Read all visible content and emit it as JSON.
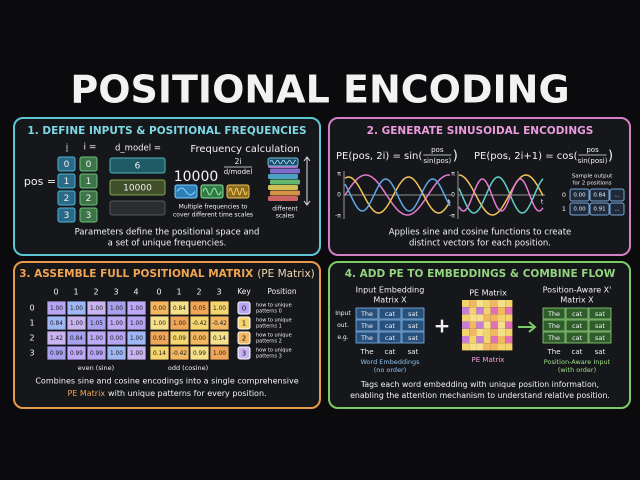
{
  "title": "POSITIONAL ENCODING",
  "define_inputs": {
    "title": "1. DEFINE INPUTS & POSITIONAL FREQUENCIES",
    "pos_header": "i",
    "i_header": "i =",
    "d_header": "d_model =",
    "pos_label": "pos =",
    "pos_values": [
      "0",
      "1",
      "2",
      "3"
    ],
    "i_values": [
      "0",
      "1",
      "2",
      "3"
    ],
    "d_values": [
      "6",
      "10000"
    ],
    "freq_title": "Frequency calculation",
    "freq_base": "10000",
    "freq_num": "2i",
    "freq_den": "d/model",
    "freq_note": [
      "Multiple frequencies to",
      "cover different time scales"
    ],
    "scales_note": [
      "different",
      "scales"
    ],
    "caption": [
      "Parameters define the positional space and",
      "a set of unique frequencies."
    ]
  },
  "sinusoids": {
    "title": "2. GENERATE SINUSOIDAL ENCODINGS",
    "formulas": [
      {
        "lhs": "PE(pos, 2i) = sin(",
        "num": "pos",
        "den": "sin(pos)",
        "rhs": ")"
      },
      {
        "lhs": "PE(pos, 2i+1) = cos(",
        "num": "pos",
        "den": "sin(posi)",
        "rhs": ")"
      }
    ],
    "axis_labels": [
      "π",
      "0",
      "-π",
      "t"
    ],
    "sample_title": [
      "Sample output",
      "for 2 positions"
    ],
    "sample_rows": [
      [
        "0",
        "0.00",
        "0.84",
        "..."
      ],
      [
        "1",
        "0.00",
        "0.91",
        "..."
      ]
    ],
    "caption": [
      "Applies sine and cosine functions to create",
      "distinct vectors for each position."
    ]
  },
  "matrix": {
    "title_main": "3. ASSEMBLE FULL POSITIONAL MATRIX",
    "title_note": "(PE Matrix)",
    "even_cols": [
      "0",
      "1",
      "2",
      "3",
      "4"
    ],
    "odd_cols": [
      "0",
      "1",
      "2",
      "3"
    ],
    "row_labels": [
      "0",
      "1",
      "2",
      "3"
    ],
    "rows": [
      [
        "1.00",
        "1.00",
        "1.00",
        "1.00",
        "1.00",
        "0.00",
        "0.84",
        "0.05",
        "1.00"
      ],
      [
        "0.84",
        "1.00",
        "1.05",
        "1.00",
        "1.00",
        "1.00",
        "1.00",
        "-0.42",
        "-0.42"
      ],
      [
        "1.42",
        "0.84",
        "1.00",
        "0.00",
        "1.00",
        "0.91",
        "0.09",
        "0.00",
        "0.14"
      ],
      [
        "0.99",
        "0.99",
        "0.99",
        "1.00",
        "1.00",
        "0.14",
        "-0.42",
        "0.99",
        "1.00"
      ]
    ],
    "key_header": "Key",
    "position_header": "Position",
    "key": [
      {
        "id": "0",
        "note": [
          "how to unique",
          "patterns 0"
        ]
      },
      {
        "id": "1",
        "note": [
          "how to unique",
          "patterns 1"
        ]
      },
      {
        "id": "2",
        "note": [
          "how to unique",
          "patterns 2"
        ]
      },
      {
        "id": "3",
        "note": [
          "how to unique",
          "patterns 3"
        ]
      }
    ],
    "even_label": "even (sine)",
    "odd_label": "odd (cosine)",
    "caption_1": "Combines sine and cosine encodings into a single comprehensive",
    "caption_2_highlight": "PE Matrix",
    "caption_2_rest": "with unique patterns for every position."
  },
  "combine": {
    "title": "4. ADD PE TO EMBEDDINGS & COMBINE FLOW",
    "input_title": [
      "Input Embedding",
      "Matrix X"
    ],
    "row_labels": [
      "Input",
      "out.",
      "e.g."
    ],
    "input_cells": [
      [
        "The",
        "cat",
        "sat"
      ],
      [
        "The",
        "cat",
        "sat"
      ],
      [
        "The",
        "cat",
        "sat"
      ]
    ],
    "input_words": [
      "The",
      "cat",
      "sat"
    ],
    "input_note": [
      "Word Embeddings",
      "(no order)"
    ],
    "plus": "+",
    "pe_title": "PE Matrix",
    "pe_label": "PE Matrix",
    "output_title": [
      "Position-Aware X'",
      "Matrix X"
    ],
    "output_cells": [
      [
        "The",
        "cat",
        "sat"
      ],
      [
        "The",
        "cat",
        "sat"
      ],
      [
        "The",
        "cat",
        "sat"
      ]
    ],
    "output_words": [
      "The",
      "cat",
      "sat"
    ],
    "output_note": [
      "Position-Aware Input",
      "(with order)"
    ],
    "caption": [
      "Tags each word embedding with unique position information,",
      "enabling the attention mechanism to understand relative position."
    ]
  }
}
